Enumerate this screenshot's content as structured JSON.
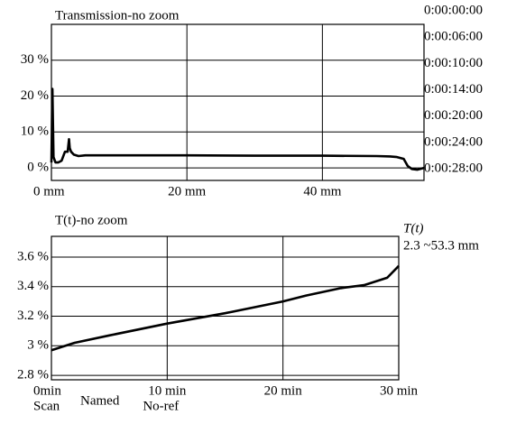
{
  "chart_data": [
    {
      "type": "line",
      "title": "Transmission-no zoom",
      "x": [
        0,
        0.15,
        0.3,
        0.6,
        1,
        1.5,
        2,
        2.4,
        2.6,
        2.7,
        2.9,
        3.3,
        4,
        5,
        10,
        20,
        30,
        40,
        48,
        50,
        51,
        52,
        52.6,
        53.2,
        54,
        55
      ],
      "values": [
        1.5,
        22,
        3,
        1.5,
        1.5,
        2,
        4.5,
        4.5,
        8,
        5.5,
        4.5,
        3.7,
        3.3,
        3.5,
        3.5,
        3.5,
        3.4,
        3.4,
        3.3,
        3.2,
        3,
        2.5,
        0.5,
        -0.3,
        -0.5,
        0
      ],
      "color": "#000000",
      "xlim": [
        0,
        55
      ],
      "ylim": [
        -3.5,
        40
      ],
      "xticks": [
        {
          "value": 0,
          "label": "0 mm"
        },
        {
          "value": 20,
          "label": "20 mm"
        },
        {
          "value": 40,
          "label": "40 mm"
        }
      ],
      "yticks": [
        {
          "value": 0,
          "label": "0 %"
        },
        {
          "value": 10,
          "label": "10 %"
        },
        {
          "value": 20,
          "label": "20 %"
        },
        {
          "value": 30,
          "label": "30 %"
        }
      ],
      "grid": true,
      "annotations": [
        "0:00:00:00",
        "0:00:06:00",
        "0:00:10:00",
        "0:00:14:00",
        "0:00:20:00",
        "0:00:24:00",
        "0:00:28:00"
      ]
    },
    {
      "type": "line",
      "title": "T(t)-no zoom",
      "x": [
        0,
        2,
        5,
        10,
        15,
        20,
        22,
        25,
        27,
        29,
        30
      ],
      "values": [
        2.97,
        3.02,
        3.07,
        3.15,
        3.22,
        3.3,
        3.34,
        3.39,
        3.41,
        3.46,
        3.54
      ],
      "color": "#000000",
      "xlim": [
        0,
        30
      ],
      "ylim": [
        2.77,
        3.74
      ],
      "xticks": [
        {
          "value": 0,
          "label": "0min"
        },
        {
          "value": 10,
          "label": "10 min"
        },
        {
          "value": 20,
          "label": "20 min"
        },
        {
          "value": 30,
          "label": "30 min"
        }
      ],
      "yticks": [
        {
          "value": 2.8,
          "label": "2.8 %"
        },
        {
          "value": 3,
          "label": "3 %"
        },
        {
          "value": 3.2,
          "label": "3.2 %"
        },
        {
          "value": 3.4,
          "label": "3.4 %"
        },
        {
          "value": 3.6,
          "label": "3.6 %"
        }
      ],
      "grid": true,
      "annotations": [
        "T(t)",
        "2.3 ~53.3 mm"
      ],
      "x_notes": [
        "Scan",
        "Named",
        "No-ref"
      ]
    }
  ]
}
